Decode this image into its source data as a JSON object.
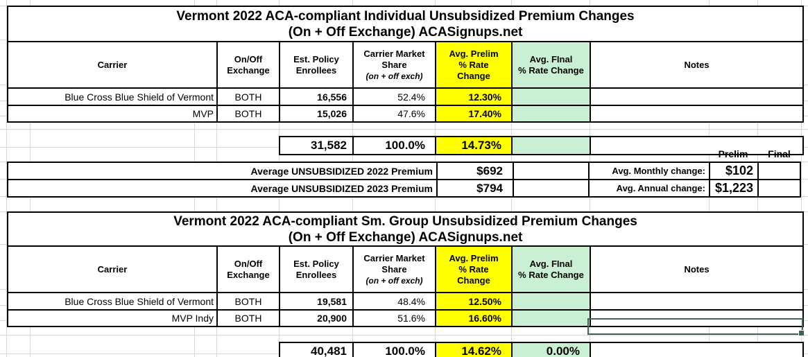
{
  "colors": {
    "highlight_yellow": "#ffff00",
    "highlight_green": "#c9f0d2",
    "selection_border": "#3f6354",
    "grid_line": "#d8d8d8",
    "border_black": "#000000"
  },
  "headers": {
    "carrier": "Carrier",
    "exchange_l1": "On/Off",
    "exchange_l2": "Exchange",
    "enrollees_l1": "Est. Policy",
    "enrollees_l2": "Enrollees",
    "share_l1": "Carrier Market",
    "share_l2": "Share",
    "share_l3": "(on + off exch)",
    "prelim_l1": "Avg. Prelim",
    "prelim_l2": "% Rate",
    "prelim_l3": "Change",
    "final_l1": "Avg. FInal",
    "final_l2": "% Rate Change",
    "notes": "Notes"
  },
  "table1": {
    "title_line1": "Vermont 2022 ACA-compliant Individual Unsubsidized Premium Changes",
    "title_line2": "(On + Off Exchange) ACASignups.net",
    "rows": [
      {
        "carrier": "Blue Cross Blue Shield of Vermont",
        "exchange": "BOTH",
        "enrollees": "16,556",
        "share": "52.4%",
        "prelim": "12.30%",
        "final": "",
        "notes": ""
      },
      {
        "carrier": "MVP",
        "exchange": "BOTH",
        "enrollees": "15,026",
        "share": "47.6%",
        "prelim": "17.40%",
        "final": "",
        "notes": ""
      }
    ],
    "totals": {
      "enrollees": "31,582",
      "share": "100.0%",
      "prelim": "14.73%",
      "final": "",
      "notes": ""
    }
  },
  "summary": {
    "prelim_col_label": "Prelim",
    "final_col_label": "Final",
    "rows": [
      {
        "label": "Average UNSUBSIDIZED 2022 Premium",
        "prelim_value": "$692",
        "final_value": "",
        "change_label": "Avg. Monthly change:",
        "change_prelim": "$102",
        "change_final": ""
      },
      {
        "label": "Average UNSUBSIDIZED 2023 Premium",
        "prelim_value": "$794",
        "final_value": "",
        "change_label": "Avg. Annual change:",
        "change_prelim": "$1,223",
        "change_final": ""
      }
    ]
  },
  "table2": {
    "title_line1": "Vermont 2022 ACA-compliant Sm. Group Unsubsidized Premium Changes",
    "title_line2": "(On + Off Exchange) ACASignups.net",
    "rows": [
      {
        "carrier": "Blue Cross Blue Shield of Vermont",
        "exchange": "BOTH",
        "enrollees": "19,581",
        "share": "48.4%",
        "prelim": "12.50%",
        "final": "",
        "notes": ""
      },
      {
        "carrier": "MVP Indy",
        "exchange": "BOTH",
        "enrollees": "20,900",
        "share": "51.6%",
        "prelim": "16.60%",
        "final": "",
        "notes": ""
      }
    ],
    "totals": {
      "enrollees": "40,481",
      "share": "100.0%",
      "prelim": "14.62%",
      "final": "0.00%",
      "notes": ""
    }
  }
}
